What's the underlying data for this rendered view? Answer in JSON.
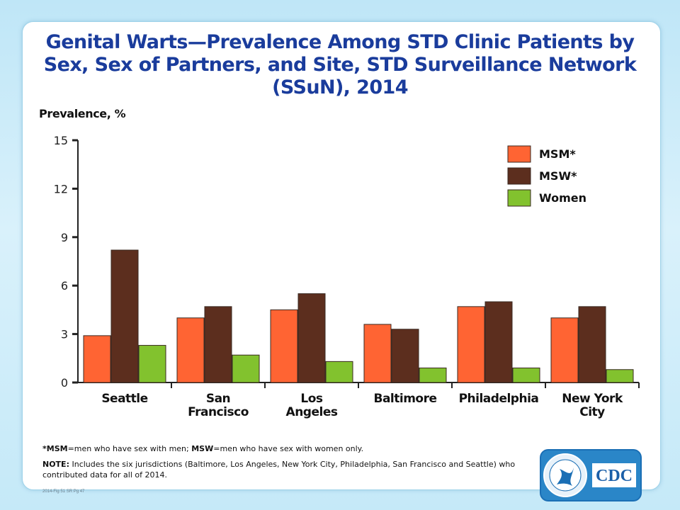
{
  "title": "Genital Warts—Prevalence Among STD Clinic Patients by Sex, Sex of Partners, and Site, STD Surveillance Network (SSuN), 2014",
  "footnote_abbrev": {
    "msm_term": "*MSM",
    "msm_def": "=men who have sex with men; ",
    "msw_term": "MSW",
    "msw_def": "=men who have sex with women only."
  },
  "footnote_note": {
    "label": "NOTE:",
    "text": " Includes the six jurisdictions (Baltimore, Los Angeles, New York City, Philadelphia, San Francisco and Seattle) who contributed data for all of 2014."
  },
  "figure_ref": "2014-Fig 51 SR Pg 47",
  "logo": {
    "agency": "CDC"
  },
  "colors": {
    "MSM": "#ff6433",
    "MSW": "#5c2e1e",
    "Women": "#82c22e",
    "title": "#1a3c9c"
  },
  "chart_data": {
    "type": "bar",
    "title": "Genital Warts—Prevalence Among STD Clinic Patients by Sex, Sex of Partners, and Site, STD Surveillance Network (SSuN), 2014",
    "ylabel": "Prevalence, %",
    "xlabel": "",
    "ylim": [
      0,
      15
    ],
    "yticks": [
      0,
      3,
      6,
      9,
      12,
      15
    ],
    "legend": "top-right",
    "grid": false,
    "categories": [
      [
        "Seattle"
      ],
      [
        "San",
        "Francisco"
      ],
      [
        "Los",
        "Angeles"
      ],
      [
        "Baltimore"
      ],
      [
        "Philadelphia"
      ],
      [
        "New York",
        "City"
      ]
    ],
    "series": [
      {
        "name": "MSM*",
        "values": [
          2.9,
          4.0,
          4.5,
          3.6,
          4.7,
          4.0
        ]
      },
      {
        "name": "MSW*",
        "values": [
          8.2,
          4.7,
          5.5,
          3.3,
          5.0,
          4.7
        ]
      },
      {
        "name": "Women",
        "values": [
          2.3,
          1.7,
          1.3,
          0.9,
          0.9,
          0.8
        ]
      }
    ]
  }
}
